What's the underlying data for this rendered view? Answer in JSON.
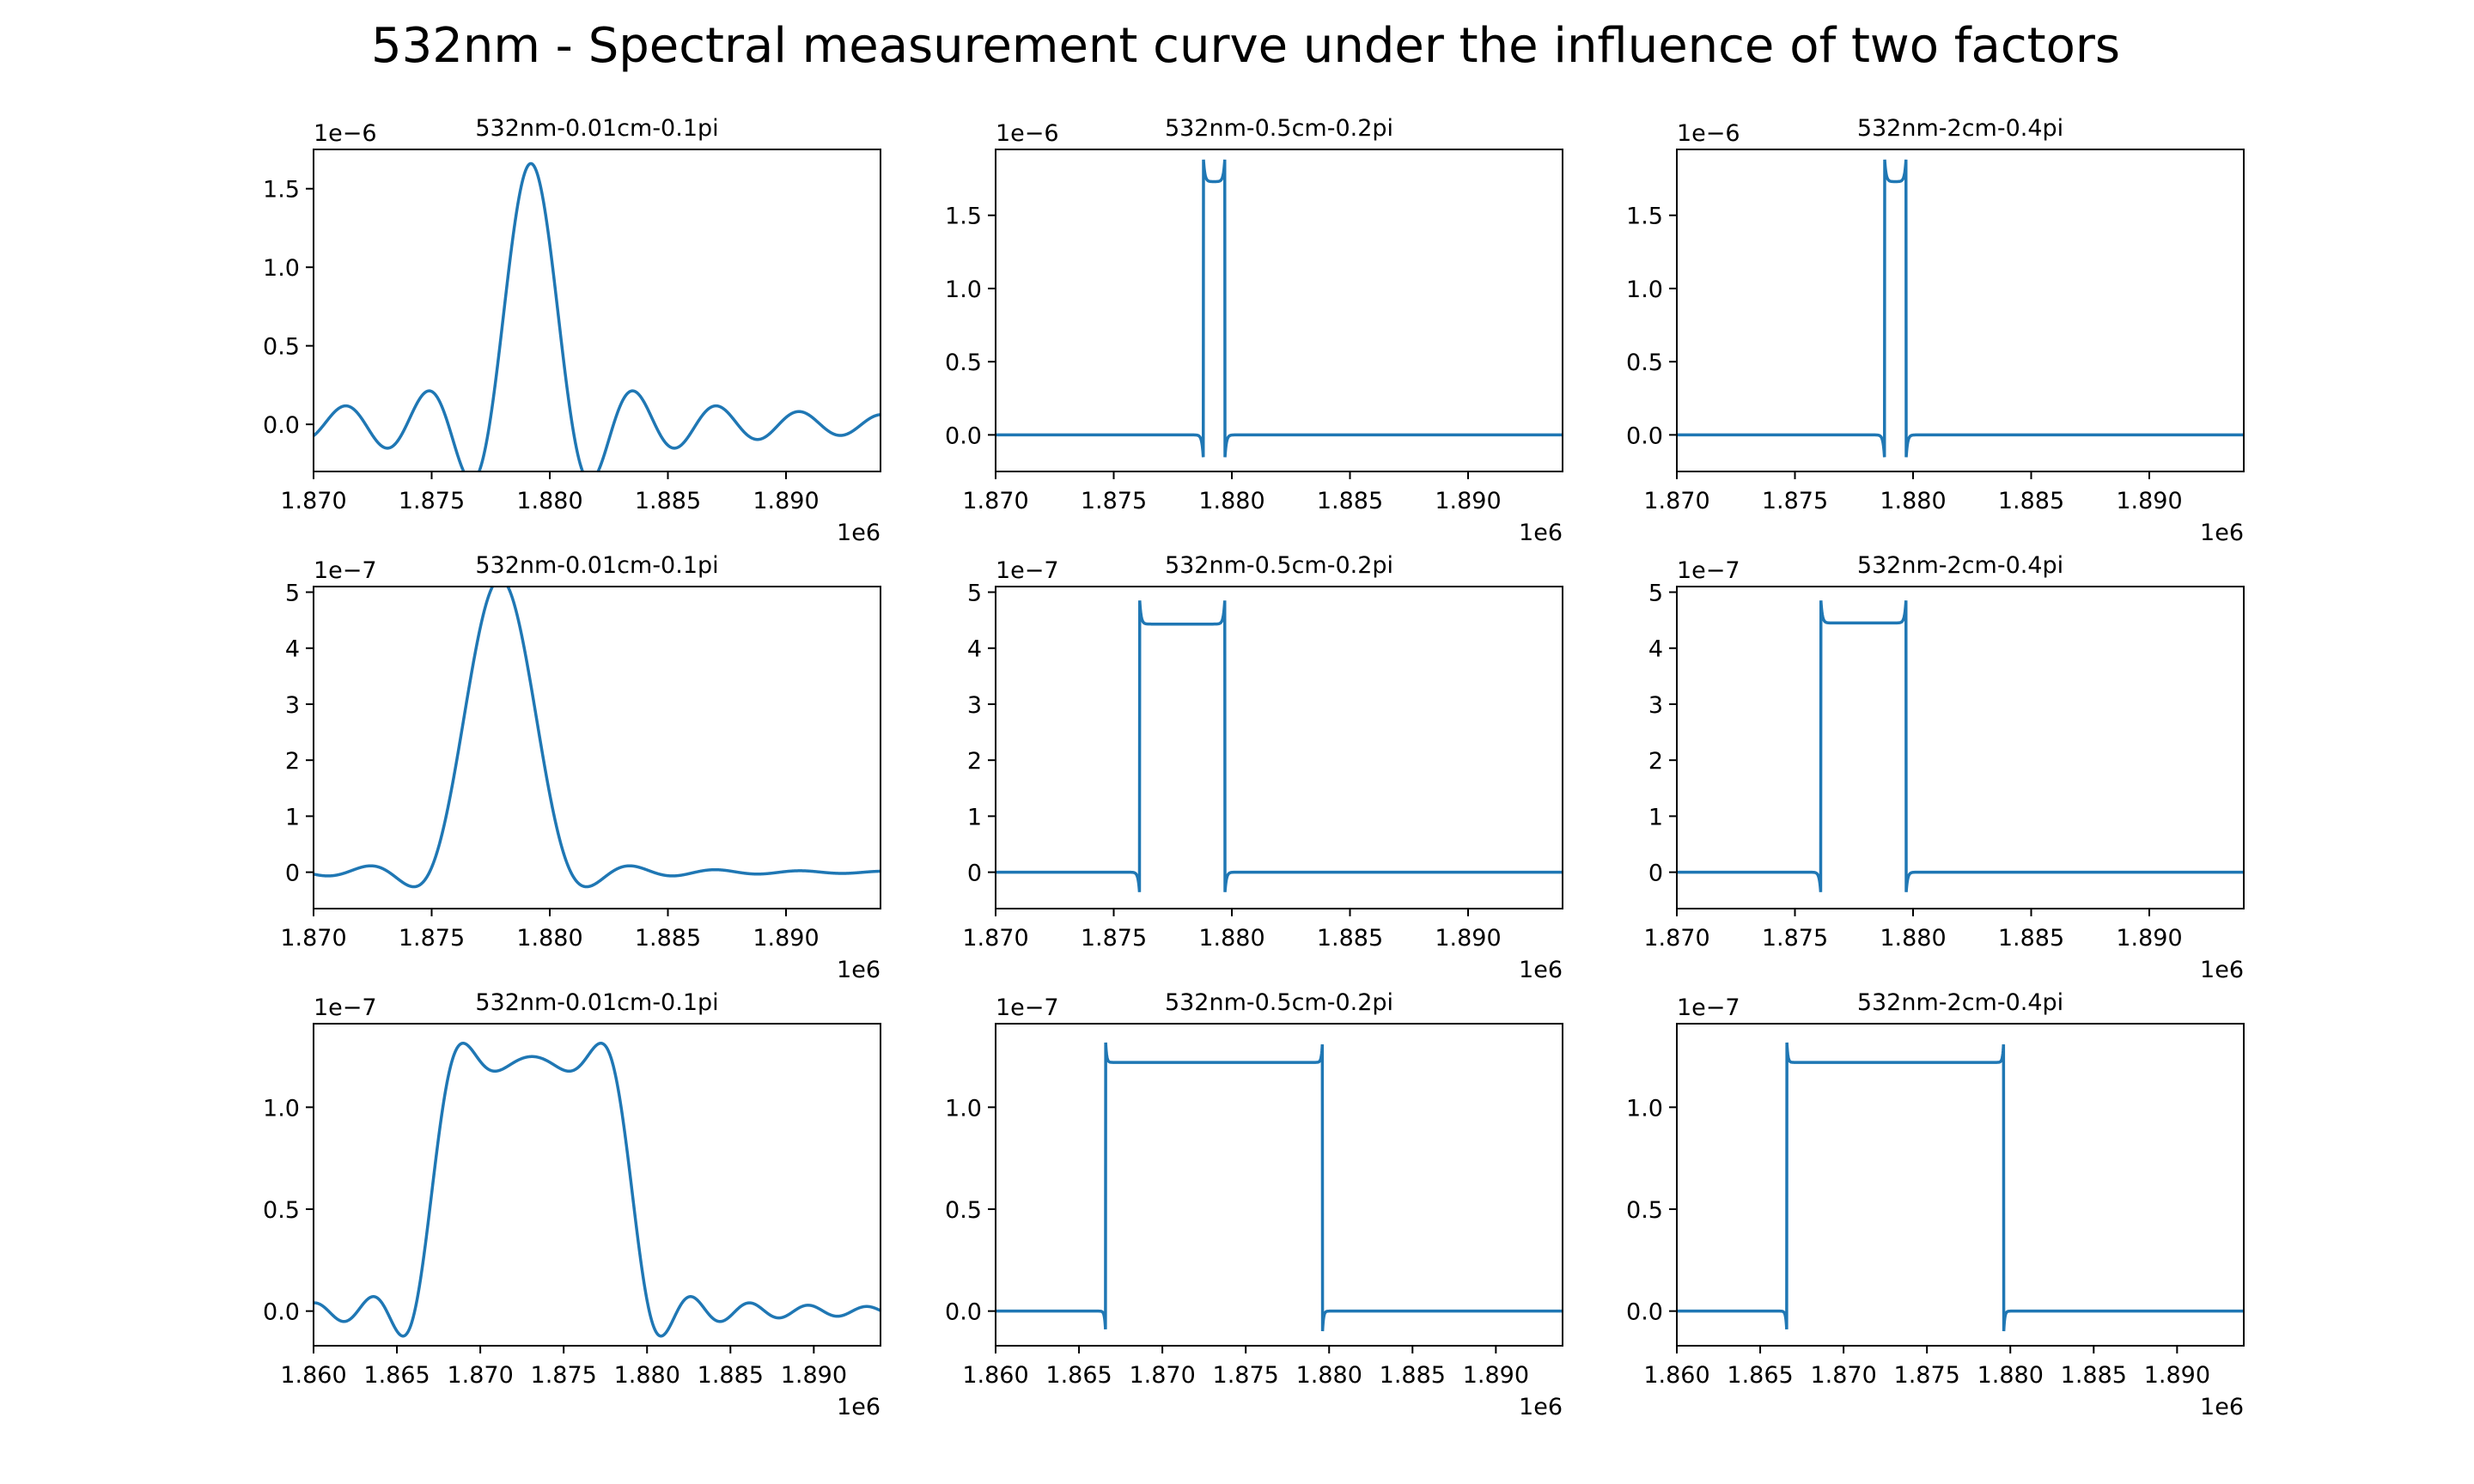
{
  "figure": {
    "title": "532nm - Spectral measurement curve under the influence of two factors",
    "line_color": "#1f77b4",
    "grid": false
  },
  "chart_data": [
    {
      "type": "line",
      "title": "532nm-0.01cm-0.1pi",
      "x_offset_label": "1e6",
      "y_offset_label": "1e−6",
      "xlim": [
        1.87,
        1.894
      ],
      "ylim": [
        -0.3,
        1.75
      ],
      "x_ticks": [
        1.87,
        1.875,
        1.88,
        1.885,
        1.89
      ],
      "x_tick_labels": [
        "1.870",
        "1.875",
        "1.880",
        "1.885",
        "1.890"
      ],
      "y_ticks": [
        0.0,
        0.5,
        1.0,
        1.5
      ],
      "y_tick_labels": [
        "0.0",
        "0.5",
        "1.0",
        "1.5"
      ],
      "curve": {
        "model": "sinc_band",
        "center": 1.8792,
        "width": 0.0009,
        "height": 1.66,
        "peak": 1.66,
        "ripple": 0
      }
    },
    {
      "type": "line",
      "title": "532nm-0.5cm-0.2pi",
      "x_offset_label": "1e6",
      "y_offset_label": "1e−6",
      "xlim": [
        1.87,
        1.894
      ],
      "ylim": [
        -0.25,
        1.95
      ],
      "x_ticks": [
        1.87,
        1.875,
        1.88,
        1.885,
        1.89
      ],
      "x_tick_labels": [
        "1.870",
        "1.875",
        "1.880",
        "1.885",
        "1.890"
      ],
      "y_ticks": [
        0.0,
        0.5,
        1.0,
        1.5
      ],
      "y_tick_labels": [
        "0.0",
        "0.5",
        "1.0",
        "1.5"
      ],
      "curve": {
        "model": "rect_band",
        "x0": 1.8788,
        "x1": 1.8797,
        "height": 1.73,
        "peak": 1.88,
        "undershoot": -0.18
      }
    },
    {
      "type": "line",
      "title": "532nm-2cm-0.4pi",
      "x_offset_label": "1e6",
      "y_offset_label": "1e−6",
      "xlim": [
        1.87,
        1.894
      ],
      "ylim": [
        -0.25,
        1.95
      ],
      "x_ticks": [
        1.87,
        1.875,
        1.88,
        1.885,
        1.89
      ],
      "x_tick_labels": [
        "1.870",
        "1.875",
        "1.880",
        "1.885",
        "1.890"
      ],
      "y_ticks": [
        0.0,
        0.5,
        1.0,
        1.5
      ],
      "y_tick_labels": [
        "0.0",
        "0.5",
        "1.0",
        "1.5"
      ],
      "curve": {
        "model": "rect_band",
        "x0": 1.8788,
        "x1": 1.8797,
        "height": 1.73,
        "peak": 1.88,
        "undershoot": -0.18
      }
    },
    {
      "type": "line",
      "title": "532nm-0.01cm-0.1pi",
      "x_offset_label": "1e6",
      "y_offset_label": "1e−7",
      "xlim": [
        1.87,
        1.894
      ],
      "ylim": [
        -0.65,
        5.1
      ],
      "x_ticks": [
        1.87,
        1.875,
        1.88,
        1.885,
        1.89
      ],
      "x_tick_labels": [
        "1.870",
        "1.875",
        "1.880",
        "1.885",
        "1.890"
      ],
      "y_ticks": [
        0,
        1,
        2,
        3,
        4,
        5
      ],
      "y_tick_labels": [
        "0",
        "1",
        "2",
        "3",
        "4",
        "5"
      ],
      "curve": {
        "model": "sinc_band",
        "center": 1.8779,
        "width": 0.0036,
        "height": 4.45,
        "peak": 4.85,
        "ripple": 0.45
      }
    },
    {
      "type": "line",
      "title": "532nm-0.5cm-0.2pi",
      "x_offset_label": "1e6",
      "y_offset_label": "1e−7",
      "xlim": [
        1.87,
        1.894
      ],
      "ylim": [
        -0.65,
        5.1
      ],
      "x_ticks": [
        1.87,
        1.875,
        1.88,
        1.885,
        1.89
      ],
      "x_tick_labels": [
        "1.870",
        "1.875",
        "1.880",
        "1.885",
        "1.890"
      ],
      "y_ticks": [
        0,
        1,
        2,
        3,
        4,
        5
      ],
      "y_tick_labels": [
        "0",
        "1",
        "2",
        "3",
        "4",
        "5"
      ],
      "curve": {
        "model": "rect_band",
        "x0": 1.8761,
        "x1": 1.8797,
        "height": 4.43,
        "peak": 4.85,
        "undershoot": -0.42
      }
    },
    {
      "type": "line",
      "title": "532nm-2cm-0.4pi",
      "x_offset_label": "1e6",
      "y_offset_label": "1e−7",
      "xlim": [
        1.87,
        1.894
      ],
      "ylim": [
        -0.65,
        5.1
      ],
      "x_ticks": [
        1.87,
        1.875,
        1.88,
        1.885,
        1.89
      ],
      "x_tick_labels": [
        "1.870",
        "1.875",
        "1.880",
        "1.885",
        "1.890"
      ],
      "y_ticks": [
        0,
        1,
        2,
        3,
        4,
        5
      ],
      "y_tick_labels": [
        "0",
        "1",
        "2",
        "3",
        "4",
        "5"
      ],
      "curve": {
        "model": "rect_band",
        "x0": 1.8761,
        "x1": 1.8797,
        "height": 4.45,
        "peak": 4.85,
        "undershoot": -0.42
      }
    },
    {
      "type": "line",
      "title": "532nm-0.01cm-0.1pi",
      "x_offset_label": "1e6",
      "y_offset_label": "1e−7",
      "xlim": [
        1.86,
        1.894
      ],
      "ylim": [
        -0.17,
        1.41
      ],
      "x_ticks": [
        1.86,
        1.865,
        1.87,
        1.875,
        1.88,
        1.885,
        1.89
      ],
      "x_tick_labels": [
        "1.860",
        "1.865",
        "1.870",
        "1.875",
        "1.880",
        "1.885",
        "1.890"
      ],
      "y_ticks": [
        0.0,
        0.5,
        1.0
      ],
      "y_tick_labels": [
        "0.0",
        "0.5",
        "1.0"
      ],
      "curve": {
        "model": "sinc_band",
        "center": 1.8731,
        "width": 0.0117,
        "height": 1.22,
        "peak": 1.33,
        "ripple": 0.07
      }
    },
    {
      "type": "line",
      "title": "532nm-0.5cm-0.2pi",
      "x_offset_label": "1e6",
      "y_offset_label": "1e−7",
      "xlim": [
        1.86,
        1.894
      ],
      "ylim": [
        -0.17,
        1.41
      ],
      "x_ticks": [
        1.86,
        1.865,
        1.87,
        1.875,
        1.88,
        1.885,
        1.89
      ],
      "x_tick_labels": [
        "1.860",
        "1.865",
        "1.870",
        "1.875",
        "1.880",
        "1.885",
        "1.890"
      ],
      "y_ticks": [
        0.0,
        0.5,
        1.0
      ],
      "y_tick_labels": [
        "0.0",
        "0.5",
        "1.0"
      ],
      "curve": {
        "model": "rect_band",
        "x0": 1.8666,
        "x1": 1.8796,
        "height": 1.22,
        "peak": 1.32,
        "undershoot": -0.11
      }
    },
    {
      "type": "line",
      "title": "532nm-2cm-0.4pi",
      "x_offset_label": "1e6",
      "y_offset_label": "1e−7",
      "xlim": [
        1.86,
        1.894
      ],
      "ylim": [
        -0.17,
        1.41
      ],
      "x_ticks": [
        1.86,
        1.865,
        1.87,
        1.875,
        1.88,
        1.885,
        1.89
      ],
      "x_tick_labels": [
        "1.860",
        "1.865",
        "1.870",
        "1.875",
        "1.880",
        "1.885",
        "1.890"
      ],
      "y_ticks": [
        0.0,
        0.5,
        1.0
      ],
      "y_tick_labels": [
        "0.0",
        "0.5",
        "1.0"
      ],
      "curve": {
        "model": "rect_band",
        "x0": 1.8666,
        "x1": 1.8796,
        "height": 1.22,
        "peak": 1.32,
        "undershoot": -0.11
      }
    }
  ]
}
